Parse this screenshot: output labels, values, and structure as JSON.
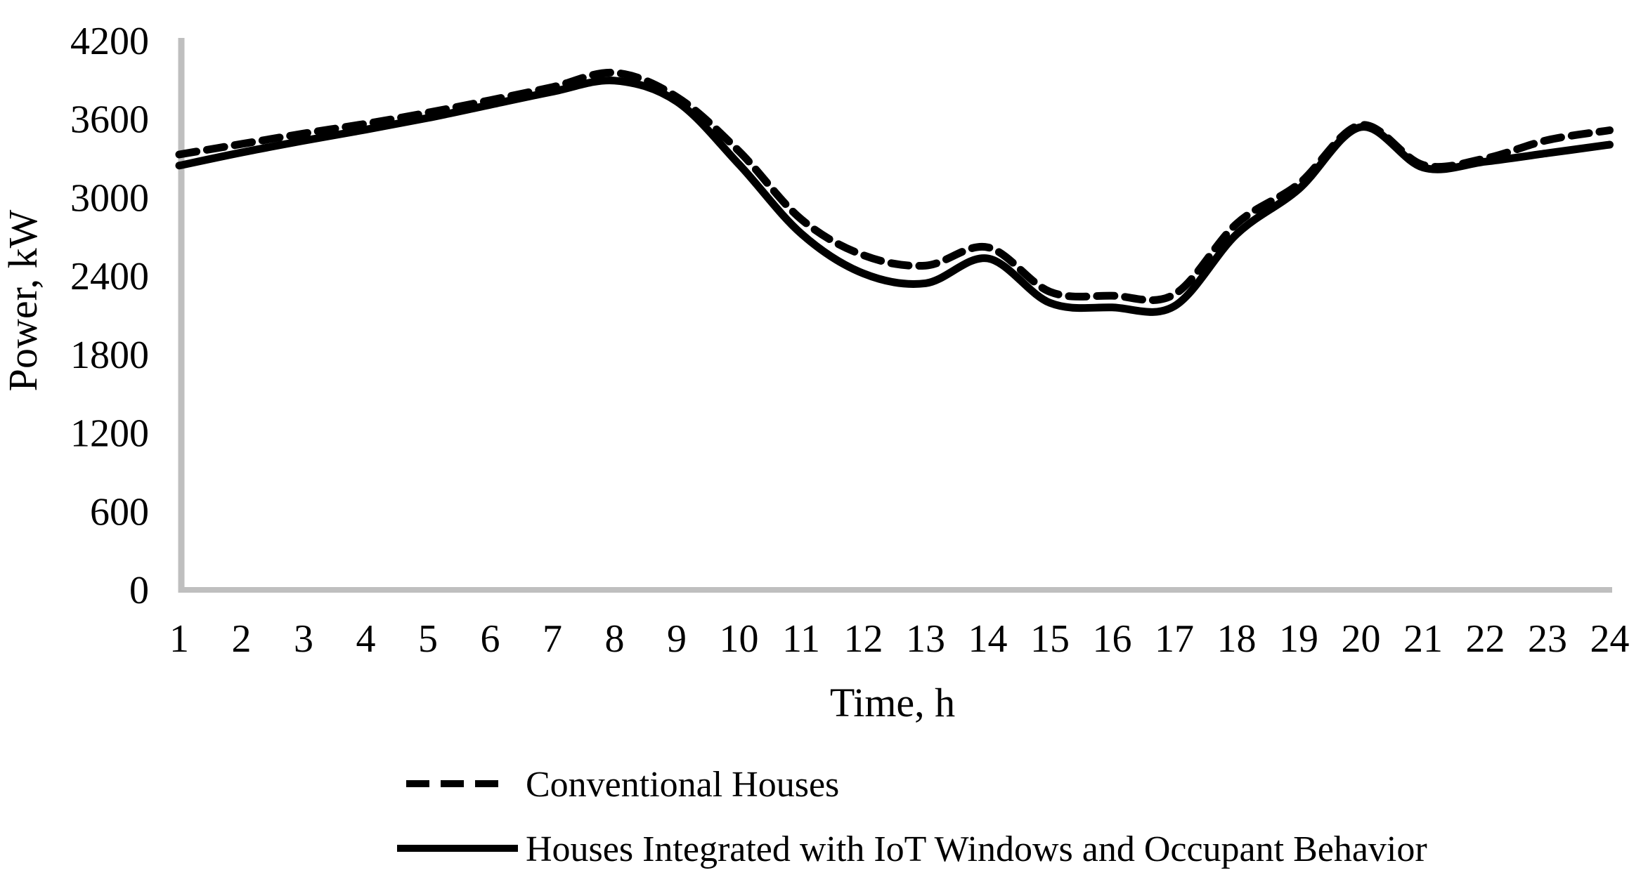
{
  "chart_data": {
    "type": "line",
    "title": "",
    "xlabel": "Time, h",
    "ylabel": "Power, kW",
    "x": [
      1,
      2,
      3,
      4,
      5,
      6,
      7,
      8,
      9,
      10,
      11,
      12,
      13,
      14,
      15,
      16,
      17,
      18,
      19,
      20,
      21,
      22,
      23,
      24
    ],
    "xticks": [
      1,
      2,
      3,
      4,
      5,
      6,
      7,
      8,
      9,
      10,
      11,
      12,
      13,
      14,
      15,
      16,
      17,
      18,
      19,
      20,
      21,
      22,
      23,
      24
    ],
    "yticks": [
      0,
      600,
      1200,
      1800,
      2400,
      3000,
      3600,
      4200
    ],
    "xlim": [
      1,
      24
    ],
    "ylim": [
      0,
      4200
    ],
    "grid": false,
    "legend_position": "bottom-left",
    "colors": {
      "axis_line": "#BFBFBF",
      "line_color": "#000000",
      "text_color": "#000000",
      "background": "#FFFFFF"
    },
    "series": [
      {
        "name": "Conventional Houses",
        "line_style": "dashed",
        "color": "#000000",
        "values": [
          3330,
          3410,
          3490,
          3565,
          3650,
          3745,
          3845,
          3955,
          3770,
          3355,
          2835,
          2560,
          2480,
          2620,
          2280,
          2250,
          2260,
          2800,
          3105,
          3555,
          3250,
          3300,
          3440,
          3515
        ]
      },
      {
        "name": "Houses Integrated with IoT Windows and Occupant Behavior",
        "line_style": "solid",
        "color": "#000000",
        "values": [
          3245,
          3345,
          3435,
          3520,
          3610,
          3710,
          3810,
          3895,
          3735,
          3255,
          2725,
          2420,
          2345,
          2535,
          2195,
          2160,
          2170,
          2720,
          3065,
          3540,
          3230,
          3275,
          3340,
          3405
        ]
      }
    ]
  }
}
